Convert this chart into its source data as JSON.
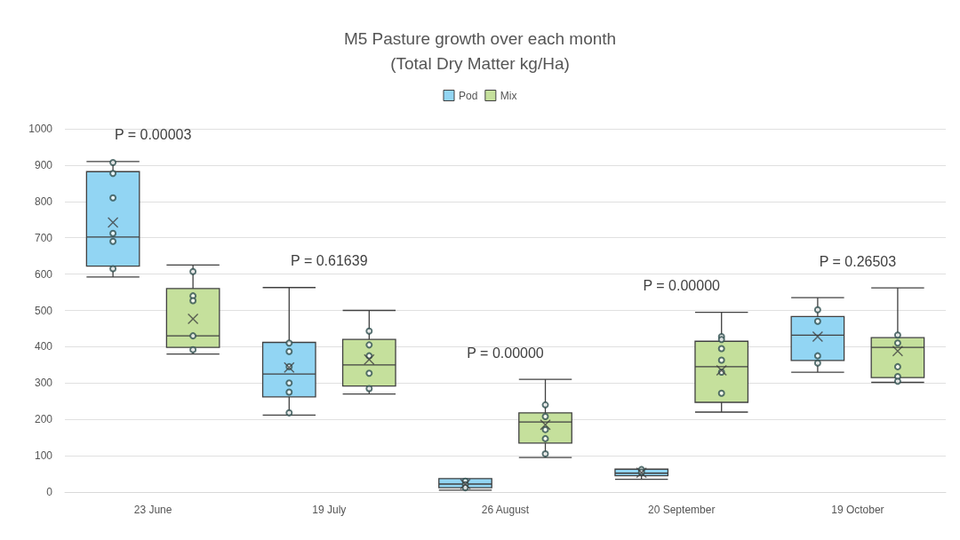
{
  "chart_data": {
    "type": "box",
    "title": "M5 Pasture growth over each month\n(Total Dry Matter kg/Ha)",
    "categories": [
      "23 June",
      "19 July",
      "26 August",
      "20 September",
      "19 October"
    ],
    "series": [
      {
        "name": "Pod",
        "color": "#92d5f3",
        "boxes": [
          {
            "low": 592,
            "q1": 622,
            "median": 702,
            "q3": 882,
            "high": 910,
            "mean": 742,
            "outliers": [
              907,
              877,
              810,
              712,
              690,
              615
            ]
          },
          {
            "low": 212,
            "q1": 262,
            "median": 325,
            "q3": 412,
            "high": 563,
            "mean": 343,
            "outliers": [
              410,
              387,
              345,
              300,
              275,
              218
            ]
          },
          {
            "low": 5,
            "q1": 12,
            "median": 22,
            "q3": 37,
            "high": 37,
            "mean": 22,
            "outliers": [
              30,
              20,
              12
            ]
          },
          {
            "low": 35,
            "q1": 45,
            "median": 52,
            "q3": 63,
            "high": 63,
            "mean": 53,
            "outliers": [
              62,
              55
            ]
          },
          {
            "low": 330,
            "q1": 362,
            "median": 432,
            "q3": 483,
            "high": 535,
            "mean": 428,
            "outliers": [
              502,
              470,
              375,
              355
            ]
          }
        ]
      },
      {
        "name": "Mix",
        "color": "#c5e09c",
        "boxes": [
          {
            "low": 380,
            "q1": 398,
            "median": 430,
            "q3": 560,
            "high": 625,
            "mean": 477,
            "outliers": [
              607,
              540,
              527,
              430,
              392
            ]
          },
          {
            "low": 270,
            "q1": 292,
            "median": 350,
            "q3": 420,
            "high": 500,
            "mean": 365,
            "outliers": [
              443,
              405,
              375,
              327,
              285
            ]
          },
          {
            "low": 95,
            "q1": 135,
            "median": 193,
            "q3": 218,
            "high": 310,
            "mean": 185,
            "outliers": [
              240,
              208,
              172,
              147,
              105
            ]
          },
          {
            "low": 220,
            "q1": 247,
            "median": 345,
            "q3": 415,
            "high": 495,
            "mean": 335,
            "outliers": [
              428,
              420,
              395,
              363,
              330,
              272
            ]
          },
          {
            "low": 302,
            "q1": 315,
            "median": 398,
            "q3": 425,
            "high": 562,
            "mean": 388,
            "outliers": [
              432,
              410,
              345,
              318,
              305
            ]
          }
        ]
      }
    ],
    "ylim": [
      0,
      1000
    ],
    "yticks": [
      0,
      100,
      200,
      300,
      400,
      500,
      600,
      700,
      800,
      900,
      1000
    ],
    "grid": "y",
    "legend": "top",
    "marker": "circle",
    "annotations": [
      "P = 0.00003",
      "P = 0.61639",
      "P = 0.00000",
      "P = 0.00000",
      "P = 0.26503"
    ]
  }
}
